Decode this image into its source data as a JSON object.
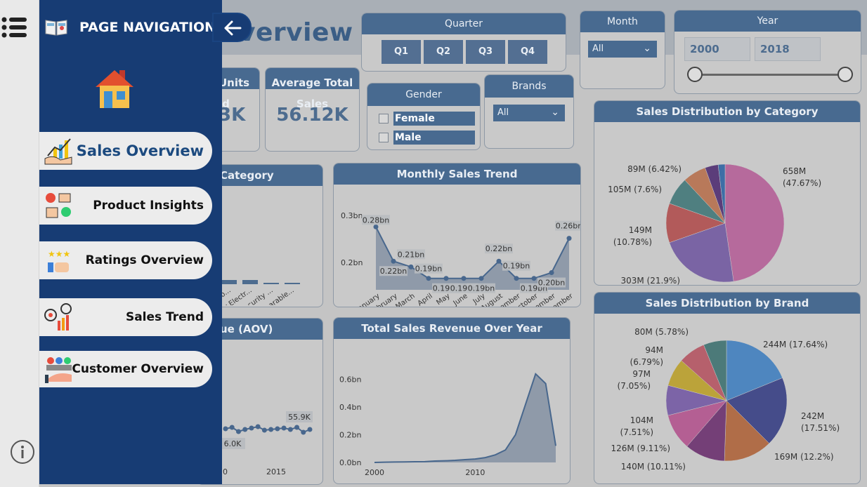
{
  "report": {
    "title_fragment": "verview"
  },
  "nav": {
    "title": "PAGE NAVIGATION",
    "items": [
      {
        "label": "Sales Overview",
        "active": true
      },
      {
        "label": "Product Insights"
      },
      {
        "label": "Ratings Overview"
      },
      {
        "label": "Sales Trend"
      },
      {
        "label": "Customer Overview"
      }
    ]
  },
  "slicers": {
    "quarter": {
      "title": "Quarter",
      "options": [
        "Q1",
        "Q2",
        "Q3",
        "Q4"
      ]
    },
    "month": {
      "title": "Month",
      "value": "All"
    },
    "year": {
      "title": "Year",
      "start": "2000",
      "end": "2018",
      "range": [
        2000,
        2018
      ]
    },
    "gender": {
      "title": "Gender",
      "options": [
        "Female",
        "Male"
      ]
    },
    "brands": {
      "title": "Brands",
      "value": "All"
    }
  },
  "kpis": {
    "units_sold": {
      "title_l1": "Units",
      "title_l2": "ld",
      "value": "3K"
    },
    "avg_total_sales": {
      "title_l1": "Average Total",
      "title_l2": "Sales",
      "value": "56.12K"
    }
  },
  "colors": {
    "accent": "#486a90",
    "nav_bg": "#173c74",
    "canvas": "#c4c4c4"
  },
  "chart_data": [
    {
      "type": "bar",
      "title": "Category",
      "categories": [
        "...sio...",
        "Car Electr...",
        "Security ...",
        "Wearable..."
      ]
    },
    {
      "type": "area",
      "title": "Monthly Sales Trend",
      "categories": [
        "January",
        "February",
        "March",
        "April",
        "May",
        "June",
        "July",
        "August",
        "September",
        "October",
        "November",
        "December"
      ],
      "values": [
        0.28,
        0.22,
        0.21,
        0.19,
        0.19,
        0.19,
        0.19,
        0.22,
        0.19,
        0.19,
        0.2,
        0.26
      ],
      "data_labels": [
        "0.28bn",
        "0.22bn",
        "0.21bn",
        "0.19bn",
        "0.19bn",
        "0.19bn",
        "0.19bn",
        "0.22bn",
        "0.19bn",
        "0.19bn",
        "0.20bn",
        "0.26bn"
      ],
      "yticks": [
        "0.3bn",
        "0.2bn"
      ],
      "ylim": [
        0.17,
        0.3
      ]
    },
    {
      "type": "line",
      "title": "ue (AOV)",
      "x": [
        2005,
        2006,
        2007,
        2008,
        2009,
        2010,
        2011,
        2012,
        2013,
        2014,
        2015,
        2016,
        2017,
        2018
      ],
      "values": [
        56.0,
        56.2,
        55.6,
        55.9,
        56.1,
        56.3,
        55.8,
        55.9,
        56.0,
        56.1,
        55.9,
        56.2,
        55.5,
        55.9
      ],
      "labels": [
        "55.9K",
        "6.0K"
      ],
      "xticks": [
        "0",
        "2015"
      ]
    },
    {
      "type": "area",
      "title": "Total Sales Revenue Over Year",
      "x": [
        2000,
        2001,
        2002,
        2003,
        2004,
        2005,
        2006,
        2007,
        2008,
        2009,
        2010,
        2011,
        2012,
        2013,
        2014,
        2015,
        2016,
        2017,
        2018
      ],
      "values": [
        0.0,
        0.002,
        0.003,
        0.004,
        0.005,
        0.006,
        0.01,
        0.012,
        0.015,
        0.02,
        0.025,
        0.035,
        0.055,
        0.09,
        0.2,
        0.42,
        0.64,
        0.57,
        0.12
      ],
      "yticks": [
        "0.6bn",
        "0.4bn",
        "0.2bn",
        "0.0bn"
      ],
      "xticks": [
        "2000",
        "2010"
      ],
      "ylim": [
        0,
        0.7
      ]
    },
    {
      "type": "pie",
      "title": "Sales Distribution by Category",
      "labels": [
        "658M (47.67%)",
        "303M (21.9%)",
        "149M (10.78%)",
        "105M (7.6%)",
        "89M (6.42%)",
        "",
        ""
      ],
      "values": [
        658,
        303,
        149,
        105,
        89,
        50,
        26
      ],
      "colors": [
        "#b66a9c",
        "#7a64a4",
        "#b25a5a",
        "#4f7f80",
        "#b8795a",
        "#5b3d7a",
        "#3e6ea6"
      ]
    },
    {
      "type": "pie",
      "title": "Sales Distribution by Brand",
      "labels": [
        "244M (17.64%)",
        "242M (17.51%)",
        "169M (12.2%)",
        "140M (10.11%)",
        "126M (9.11%)",
        "104M (7.51%)",
        "97M (7.05%)",
        "94M (6.79%)",
        "80M (5.78%)"
      ],
      "values": [
        244,
        242,
        169,
        140,
        126,
        104,
        97,
        94,
        80
      ],
      "colors": [
        "#4e86bf",
        "#454c8a",
        "#b06d48",
        "#743f77",
        "#b45f93",
        "#7c64a7",
        "#bba33a",
        "#b6606c",
        "#4c7a79",
        "#4c8e58"
      ]
    }
  ]
}
